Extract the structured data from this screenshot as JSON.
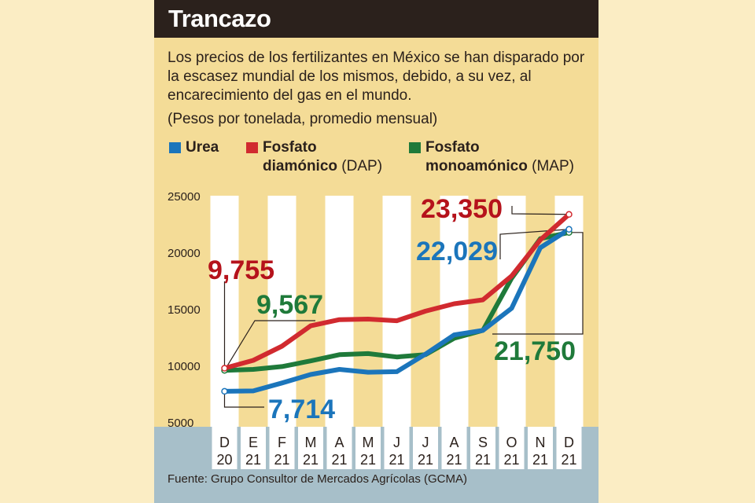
{
  "title": "Trancazo",
  "subtitle": "Los precios de los fertilizantes en México se han disparado por la escasez mundial de los mismos, debido, a su vez, al encarecimiento del gas en el mundo.",
  "units_note": "(Pesos por tonelada, promedio mensual)",
  "legend": {
    "urea": {
      "label": "Urea"
    },
    "dap": {
      "label_bold": "Fosfato",
      "label_line2_bold": "diamónico",
      "label_line2_light": "(DAP)"
    },
    "map": {
      "label_bold": "Fosfato",
      "label_line2_bold": "monoamónico",
      "label_line2_light": "(MAP)"
    }
  },
  "colors": {
    "urea": "#1b75bb",
    "dap": "#d12a2f",
    "map": "#1f7a3a",
    "dap_label": "#b5121b",
    "stripe": "#ffffff",
    "axis_band": "#a7bfc9",
    "panel": "#f4dc97"
  },
  "source": "Fuente: Grupo Consultor de Mercados Agrícolas (GCMA)",
  "chart_data": {
    "type": "line",
    "title": "Trancazo",
    "ylabel": "Pesos por tonelada, promedio mensual",
    "ylim": [
      5000,
      25000
    ],
    "yticks": [
      "5000",
      "10000",
      "15000",
      "20000",
      "25000"
    ],
    "categories": [
      {
        "m": "D",
        "y": "20"
      },
      {
        "m": "E",
        "y": "21"
      },
      {
        "m": "F",
        "y": "21"
      },
      {
        "m": "M",
        "y": "21"
      },
      {
        "m": "A",
        "y": "21"
      },
      {
        "m": "M",
        "y": "21"
      },
      {
        "m": "J",
        "y": "21"
      },
      {
        "m": "J",
        "y": "21"
      },
      {
        "m": "A",
        "y": "21"
      },
      {
        "m": "S",
        "y": "21"
      },
      {
        "m": "O",
        "y": "21"
      },
      {
        "m": "N",
        "y": "21"
      },
      {
        "m": "D",
        "y": "21"
      }
    ],
    "series": [
      {
        "key": "map",
        "name": "Fosfato monoamónico (MAP)",
        "values": [
          9567,
          9650,
          9900,
          10400,
          10950,
          11050,
          10750,
          10950,
          12400,
          13100,
          17700,
          21200,
          21750
        ]
      },
      {
        "key": "urea",
        "name": "Urea",
        "values": [
          7714,
          7750,
          8450,
          9200,
          9650,
          9400,
          9450,
          11000,
          12700,
          13100,
          15050,
          20400,
          22029
        ]
      },
      {
        "key": "dap",
        "name": "Fosfato diamónico (DAP)",
        "values": [
          9755,
          10450,
          11700,
          13500,
          14050,
          14100,
          13950,
          14800,
          15450,
          15800,
          17900,
          21100,
          23350
        ]
      }
    ],
    "annotations": [
      {
        "key": "dap_start",
        "text": "9,755"
      },
      {
        "key": "map_start",
        "text": "9,567"
      },
      {
        "key": "urea_start",
        "text": "7,714"
      },
      {
        "key": "dap_end",
        "text": "23,350"
      },
      {
        "key": "urea_end",
        "text": "22,029"
      },
      {
        "key": "map_end",
        "text": "21,750"
      }
    ]
  }
}
